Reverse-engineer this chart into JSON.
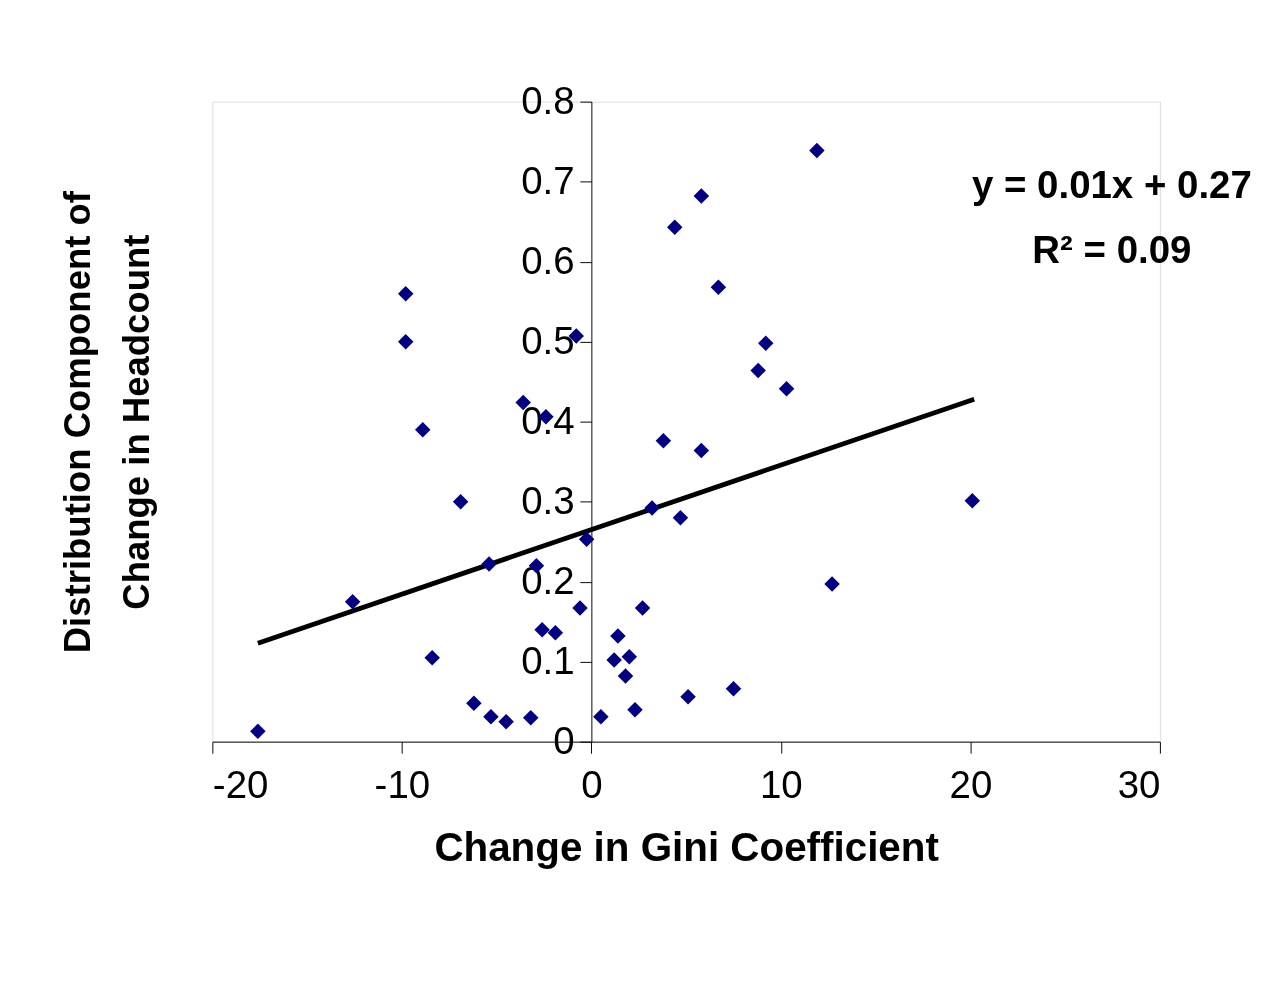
{
  "chart_data": {
    "type": "scatter",
    "xlabel": "Change in Gini Coefficient",
    "ylabel": "Distribution Component of Change in Headcount",
    "xlim": [
      -20,
      30
    ],
    "xticks": [
      -20,
      -10,
      0,
      10,
      20,
      30
    ],
    "ylim": [
      0,
      0.8
    ],
    "yticks": [
      0,
      0.1,
      0.2,
      0.3,
      0.4,
      0.5,
      0.6,
      0.7,
      0.8
    ],
    "grid": false,
    "marker": "diamond",
    "annotations": [
      "y = 0.01x + 0.27",
      "R² = 0.09"
    ],
    "series": [
      {
        "color": "#000080",
        "x": [
          -17.6,
          -12.6,
          -9.8,
          -9.8,
          -8.9,
          -8.4,
          -6.9,
          -6.2,
          -5.4,
          -5.3,
          -4.5,
          -3.6,
          -3.2,
          -2.9,
          -2.4,
          -2.6,
          -1.9,
          -0.8,
          -0.6,
          -0.25,
          0.5,
          1.2,
          1.4,
          1.8,
          2.0,
          2.3,
          2.7,
          3.2,
          3.8,
          4.4,
          4.7,
          5.1,
          5.8,
          5.8,
          6.7,
          7.5,
          8.8,
          9.2,
          10.3,
          11.9,
          12.7,
          20.1
        ],
        "values": [
          0.013,
          0.175,
          0.56,
          0.5,
          0.39,
          0.105,
          0.3,
          0.048,
          0.222,
          0.031,
          0.025,
          0.424,
          0.03,
          0.22,
          0.406,
          0.14,
          0.136,
          0.507,
          0.167,
          0.253,
          0.031,
          0.102,
          0.132,
          0.082,
          0.106,
          0.04,
          0.167,
          0.292,
          0.376,
          0.643,
          0.28,
          0.056,
          0.682,
          0.364,
          0.568,
          0.066,
          0.464,
          0.498,
          0.441,
          0.739,
          0.197,
          0.301
        ]
      },
      {
        "type": "line",
        "color": "#000000",
        "line_style": "solid",
        "marker": "none",
        "x": [
          -17.6,
          20.2
        ],
        "values": [
          0.123,
          0.428
        ]
      }
    ]
  }
}
